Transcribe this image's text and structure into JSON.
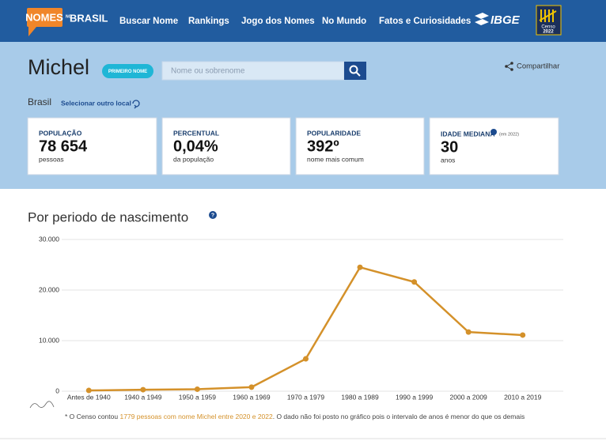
{
  "header": {
    "logo_top": "NOMES",
    "logo_small": "NO",
    "logo_bottom": "BRASIL",
    "nav": [
      "Buscar Nome",
      "Rankings",
      "Jogo dos Nomes",
      "No Mundo",
      "Fatos e Curiosidades"
    ],
    "ibge": "IBGE",
    "censo": "Censo",
    "censo_year": "2022"
  },
  "profile": {
    "name": "Michel",
    "badge": "PRIMEIRO NOME",
    "search_placeholder": "Nome ou sobrenome",
    "share": "Compartilhar",
    "location": "Brasil",
    "change_location": "Selecionar outro local"
  },
  "stats": [
    {
      "label": "POPULAÇÃO",
      "value": "78 654",
      "unit": "pessoas"
    },
    {
      "label": "PERCENTUAL",
      "value": "0,04%",
      "unit": "da população"
    },
    {
      "label": "POPULARIDADE",
      "value": "392º",
      "unit": "nome mais comum"
    },
    {
      "label": "IDADE MEDIANA",
      "note": "(em 2022)",
      "value": "30",
      "unit": "anos"
    }
  ],
  "chart_data": {
    "type": "line",
    "title": "Por periodo de nascimento",
    "categories": [
      "Antes de 1940",
      "1940 a 1949",
      "1950 a 1959",
      "1960 a 1969",
      "1970 a 1979",
      "1980 a 1989",
      "1990 a 1999",
      "2000 a 2009",
      "2010 a 2019"
    ],
    "values": [
      150,
      300,
      400,
      800,
      6400,
      24500,
      21600,
      11700,
      11100
    ],
    "color": "#d4912a",
    "ylim": [
      0,
      30000
    ],
    "yticks": [
      0,
      {
        "value": 10000,
        "label": "10.000"
      },
      {
        "value": 20000,
        "label": "20.000"
      },
      {
        "value": 30000,
        "label": "30.000"
      }
    ],
    "grid": true
  },
  "footnote": {
    "start": "* O Censo contou ",
    "highlight": "1779 pessoas com nome Michel entre 2020 e 2022",
    "end": ". O dado não foi posto no gráfico pois o intervalo de anos é menor do que os demais"
  }
}
